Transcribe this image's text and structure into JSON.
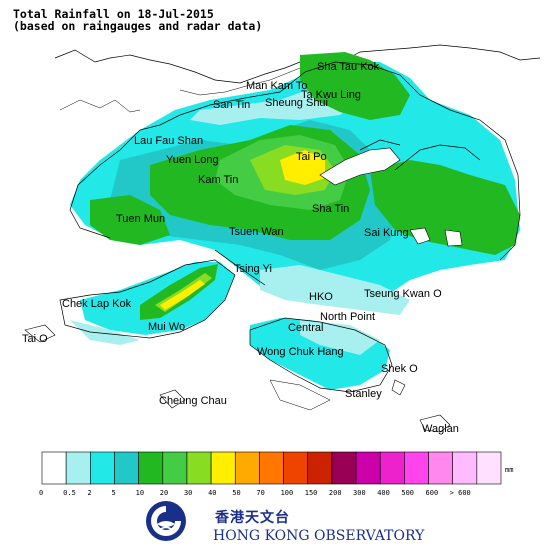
{
  "title": {
    "line1": "Total Rainfall on 18-Jul-2015",
    "line2": "(based on raingauges and radar data)"
  },
  "places": [
    {
      "name": "Sha Tau Kok"
    },
    {
      "name": "Man Kam To"
    },
    {
      "name": "Ta Kwu Ling"
    },
    {
      "name": "San Tin"
    },
    {
      "name": "Sheung Shui"
    },
    {
      "name": "Lau Fau Shan"
    },
    {
      "name": "Yuen Long"
    },
    {
      "name": "Tai Po"
    },
    {
      "name": "Kam Tin"
    },
    {
      "name": "Sha Tin"
    },
    {
      "name": "Tuen Mun"
    },
    {
      "name": "Tsuen Wan"
    },
    {
      "name": "Sai Kung"
    },
    {
      "name": "Tsing Yi"
    },
    {
      "name": "Chek Lap Kok"
    },
    {
      "name": "HKO"
    },
    {
      "name": "Tseung Kwan O"
    },
    {
      "name": "Mui Wo"
    },
    {
      "name": "North Point"
    },
    {
      "name": "Central"
    },
    {
      "name": "Tai O"
    },
    {
      "name": "Wong Chuk Hang"
    },
    {
      "name": "Shek O"
    },
    {
      "name": "Stanley"
    },
    {
      "name": "Cheung Chau"
    },
    {
      "name": "Waglan"
    }
  ],
  "legend": {
    "unit": "mm",
    "ticks": [
      "0",
      "0.5",
      "2",
      "5",
      "10",
      "20",
      "30",
      "40",
      "50",
      "70",
      "100",
      "150",
      "200",
      "300",
      "400",
      "500",
      "600",
      "> 600"
    ],
    "colors": [
      "#ffffff",
      "#a8f0f0",
      "#22e8e8",
      "#22c8c8",
      "#22b822",
      "#44cc44",
      "#88dd22",
      "#ffee00",
      "#ffaa00",
      "#ff7700",
      "#ee4400",
      "#cc2200",
      "#990055",
      "#cc00aa",
      "#ee22cc",
      "#ff44ee",
      "#ff88ee",
      "#ffbbff",
      "#ffe0ff"
    ]
  },
  "logo": {
    "chinese": "香港天文台",
    "english": "HONG KONG OBSERVATORY",
    "brand_color": "#1a2f8a"
  }
}
